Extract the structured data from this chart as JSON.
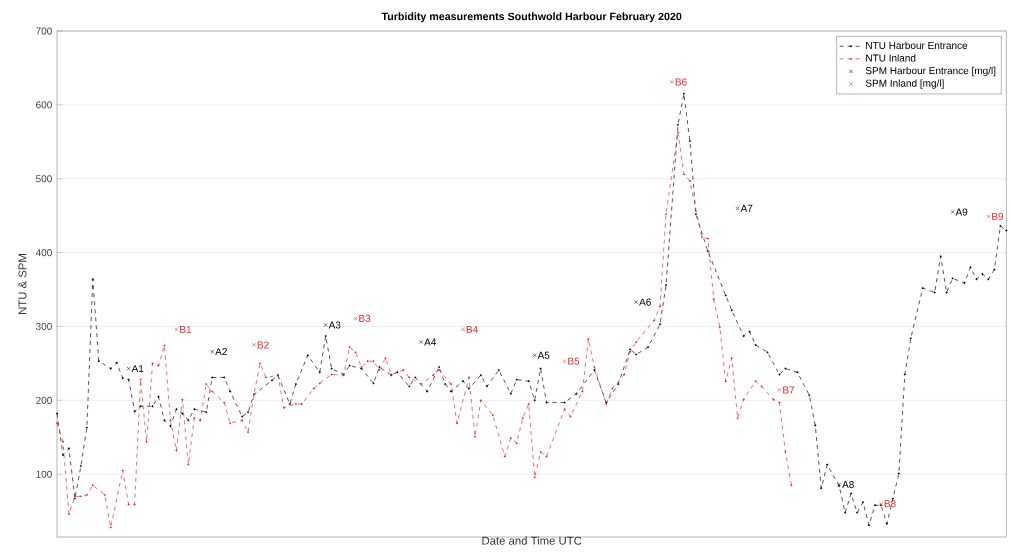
{
  "chart_data": {
    "type": "line",
    "title": "Turbidity measurements Southwold Harbour February 2020",
    "xlabel": "Date and Time UTC",
    "ylabel": "NTU & SPM",
    "categories": [
      null,
      null,
      null,
      null,
      null,
      null,
      null,
      null,
      null,
      null,
      null,
      null,
      null,
      null,
      null,
      null,
      null,
      null,
      null,
      null,
      null,
      null,
      null,
      null,
      null,
      null,
      null,
      null,
      null,
      null,
      null,
      null,
      null,
      null,
      null,
      null,
      null,
      null,
      null,
      null,
      null,
      null,
      null,
      null,
      null,
      null,
      null,
      null,
      null,
      null,
      null,
      null,
      null,
      null,
      null,
      null,
      null,
      null,
      null,
      null,
      null,
      null,
      null,
      null,
      null,
      null,
      null,
      null,
      null,
      null,
      null,
      null,
      null,
      null,
      null,
      null,
      null,
      null,
      null,
      null,
      null,
      null,
      null,
      null,
      null,
      null,
      null,
      null,
      null,
      null,
      null,
      null,
      null,
      null,
      null,
      null,
      null,
      null,
      null,
      null,
      null,
      null,
      null,
      null,
      null,
      null,
      null,
      null,
      null,
      null,
      null,
      null,
      null,
      null,
      null,
      null,
      null,
      null,
      null,
      null,
      null,
      null,
      null,
      null,
      null,
      null,
      null,
      null,
      null,
      null,
      null,
      null,
      null,
      null,
      null,
      null,
      null,
      null,
      null,
      null,
      null,
      null,
      null,
      null,
      null,
      null,
      null,
      null,
      null,
      null,
      null,
      null,
      null,
      null,
      null,
      null,
      null,
      null,
      null,
      null
    ],
    "series": [
      {
        "name": "NTU Harbour Entrance",
        "color": "#000000",
        "line_style": "dashed",
        "marker": "circle",
        "values": [
          182,
          126,
          135,
          67,
          111,
          163,
          364,
          253,
          null,
          243,
          251,
          230,
          228,
          185,
          192,
          null,
          192,
          205,
          173,
          165,
          188,
          182,
          173,
          188,
          null,
          184,
          231,
          null,
          231,
          212,
          null,
          178,
          184,
          208,
          null,
          null,
          227,
          234,
          null,
          195,
          222,
          null,
          261,
          null,
          238,
          287,
          243,
          null,
          235,
          247,
          null,
          243,
          null,
          223,
          245,
          null,
          234,
          238,
          null,
          219,
          231,
          null,
          212,
          null,
          245,
          222,
          212,
          null,
          226,
          216,
          null,
          234,
          219,
          null,
          241,
          null,
          209,
          228,
          null,
          226,
          200,
          243,
          197,
          null,
          null,
          197,
          null,
          209,
          null,
          null,
          241,
          null,
          197,
          null,
          222,
          null,
          269,
          262,
          null,
          272,
          null,
          303,
          356,
          null,
          573,
          615,
          551,
          452,
          null,
          402,
          null,
          null,
          342,
          322,
          null,
          287,
          293,
          275,
          null,
          265,
          null,
          235,
          243,
          null,
          238,
          null,
          207,
          166,
          81,
          113,
          null,
          84,
          48,
          74,
          48,
          62,
          31,
          58,
          58,
          33,
          67,
          101,
          235,
          284,
          null,
          352,
          null,
          346,
          395,
          346,
          365,
          null,
          359,
          380,
          364,
          371,
          364,
          377,
          436,
          430
        ]
      },
      {
        "name": "NTU Inland",
        "color": "#e8262a",
        "line_style": "dashed",
        "marker": "circle",
        "values": [
          169,
          144,
          46,
          70,
          70,
          72,
          85,
          null,
          72,
          28,
          null,
          105,
          59,
          59,
          228,
          144,
          250,
          247,
          274,
          173,
          132,
          201,
          113,
          176,
          173,
          222,
          212,
          null,
          197,
          169,
          null,
          173,
          157,
          208,
          250,
          231,
          null,
          234,
          190,
          null,
          195,
          195,
          null,
          216,
          223,
          null,
          235,
          null,
          234,
          272,
          265,
          245,
          253,
          253,
          241,
          257,
          235,
          null,
          241,
          231,
          null,
          222,
          null,
          234,
          241,
          null,
          222,
          169,
          null,
          231,
          151,
          200,
          null,
          180,
          null,
          124,
          149,
          142,
          176,
          195,
          96,
          130,
          124,
          null,
          null,
          188,
          178,
          null,
          212,
          283,
          245,
          null,
          195,
          216,
          null,
          235,
          266,
          279,
          null,
          null,
          308,
          327,
          452,
          null,
          563,
          506,
          497,
          null,
          421,
          419,
          337,
          299,
          226,
          257,
          176,
          201,
          null,
          226,
          219,
          null,
          201,
          197,
          130,
          85,
          null,
          null,
          null,
          null,
          null,
          null,
          null,
          null,
          null,
          null,
          null,
          null,
          null,
          null,
          null,
          null,
          null,
          null,
          null,
          null,
          null,
          null,
          null,
          null,
          null,
          null,
          null,
          null,
          null,
          null,
          null,
          null,
          null,
          null,
          null,
          null
        ]
      },
      {
        "name": "SPM Harbour Entrance [mg/l]",
        "type": "scatter",
        "color": "#000000",
        "marker": "cross",
        "values": [
          null,
          null,
          null,
          null,
          null,
          null,
          null,
          null,
          null,
          null,
          null,
          null,
          243,
          null,
          null,
          null,
          null,
          null,
          null,
          null,
          null,
          null,
          null,
          null,
          null,
          null,
          266,
          null,
          null,
          null,
          null,
          null,
          null,
          null,
          null,
          null,
          null,
          null,
          null,
          null,
          null,
          null,
          null,
          null,
          null,
          302,
          null,
          null,
          null,
          null,
          null,
          null,
          null,
          null,
          null,
          null,
          null,
          null,
          null,
          null,
          null,
          279,
          null,
          null,
          null,
          null,
          null,
          null,
          null,
          null,
          null,
          null,
          null,
          null,
          null,
          null,
          null,
          null,
          null,
          null,
          261,
          null,
          null,
          null,
          null,
          null,
          null,
          null,
          null,
          null,
          null,
          null,
          null,
          null,
          null,
          null,
          null,
          333,
          null,
          null,
          null,
          null,
          null,
          null,
          null,
          null,
          null,
          null,
          null,
          null,
          null,
          null,
          null,
          null,
          460,
          null,
          null,
          null,
          null,
          null,
          null,
          null,
          null,
          null,
          null,
          null,
          null,
          null,
          null,
          null,
          null,
          86,
          null,
          null,
          null,
          null,
          null,
          null,
          null,
          null,
          null,
          null,
          null,
          null,
          null,
          null,
          null,
          null,
          null,
          null,
          455,
          null,
          null,
          null,
          null,
          null,
          null,
          null,
          null,
          null
        ],
        "value_labels": [
          null,
          null,
          null,
          null,
          null,
          null,
          null,
          null,
          null,
          null,
          null,
          null,
          "A1",
          null,
          null,
          null,
          null,
          null,
          null,
          null,
          null,
          null,
          null,
          null,
          null,
          null,
          "A2",
          null,
          null,
          null,
          null,
          null,
          null,
          null,
          null,
          null,
          null,
          null,
          null,
          null,
          null,
          null,
          null,
          null,
          null,
          "A3",
          null,
          null,
          null,
          null,
          null,
          null,
          null,
          null,
          null,
          null,
          null,
          null,
          null,
          null,
          null,
          "A4",
          null,
          null,
          null,
          null,
          null,
          null,
          null,
          null,
          null,
          null,
          null,
          null,
          null,
          null,
          null,
          null,
          null,
          null,
          "A5",
          null,
          null,
          null,
          null,
          null,
          null,
          null,
          null,
          null,
          null,
          null,
          null,
          null,
          null,
          null,
          null,
          "A6",
          null,
          null,
          null,
          null,
          null,
          null,
          null,
          null,
          null,
          null,
          null,
          null,
          null,
          null,
          null,
          null,
          "A7",
          null,
          null,
          null,
          null,
          null,
          null,
          null,
          null,
          null,
          null,
          null,
          null,
          null,
          null,
          null,
          null,
          "A8",
          null,
          null,
          null,
          null,
          null,
          null,
          null,
          null,
          null,
          null,
          null,
          null,
          null,
          null,
          null,
          null,
          null,
          null,
          "A9",
          null,
          null,
          null,
          null,
          null,
          null,
          null,
          null,
          null
        ]
      },
      {
        "name": "SPM Inland [mg/l]",
        "type": "scatter",
        "color": "#e8262a",
        "marker": "cross",
        "values": [
          null,
          null,
          null,
          null,
          null,
          null,
          null,
          null,
          null,
          null,
          null,
          null,
          null,
          null,
          null,
          null,
          null,
          null,
          null,
          null,
          296,
          null,
          null,
          null,
          null,
          null,
          null,
          null,
          null,
          null,
          null,
          null,
          null,
          275,
          null,
          null,
          null,
          null,
          null,
          null,
          null,
          null,
          null,
          null,
          null,
          null,
          null,
          null,
          null,
          null,
          311,
          null,
          null,
          null,
          null,
          null,
          null,
          null,
          null,
          null,
          null,
          null,
          null,
          null,
          null,
          null,
          null,
          null,
          296,
          null,
          null,
          null,
          null,
          null,
          null,
          null,
          null,
          null,
          null,
          null,
          null,
          null,
          null,
          null,
          null,
          253,
          null,
          null,
          null,
          null,
          null,
          null,
          null,
          null,
          null,
          null,
          null,
          null,
          null,
          null,
          null,
          null,
          null,
          631,
          null,
          null,
          null,
          null,
          null,
          null,
          null,
          null,
          null,
          null,
          null,
          null,
          null,
          null,
          null,
          null,
          null,
          214,
          null,
          null,
          null,
          null,
          null,
          null,
          null,
          null,
          null,
          null,
          null,
          null,
          null,
          null,
          null,
          null,
          60,
          null,
          null,
          null,
          null,
          null,
          null,
          null,
          null,
          null,
          null,
          null,
          null,
          null,
          null,
          null,
          null,
          null,
          449,
          null,
          null,
          null
        ],
        "value_labels": [
          null,
          null,
          null,
          null,
          null,
          null,
          null,
          null,
          null,
          null,
          null,
          null,
          null,
          null,
          null,
          null,
          null,
          null,
          null,
          null,
          "B1",
          null,
          null,
          null,
          null,
          null,
          null,
          null,
          null,
          null,
          null,
          null,
          null,
          "B2",
          null,
          null,
          null,
          null,
          null,
          null,
          null,
          null,
          null,
          null,
          null,
          null,
          null,
          null,
          null,
          null,
          "B3",
          null,
          null,
          null,
          null,
          null,
          null,
          null,
          null,
          null,
          null,
          null,
          null,
          null,
          null,
          null,
          null,
          null,
          "B4",
          null,
          null,
          null,
          null,
          null,
          null,
          null,
          null,
          null,
          null,
          null,
          null,
          null,
          null,
          null,
          null,
          "B5",
          null,
          null,
          null,
          null,
          null,
          null,
          null,
          null,
          null,
          null,
          null,
          null,
          null,
          null,
          null,
          null,
          null,
          "B6",
          null,
          null,
          null,
          null,
          null,
          null,
          null,
          null,
          null,
          null,
          null,
          null,
          null,
          null,
          null,
          null,
          null,
          "B7",
          null,
          null,
          null,
          null,
          null,
          null,
          null,
          null,
          null,
          null,
          null,
          null,
          null,
          null,
          null,
          null,
          "B8",
          null,
          null,
          null,
          null,
          null,
          null,
          null,
          null,
          null,
          null,
          null,
          null,
          null,
          null,
          null,
          null,
          null,
          "B9",
          null,
          null,
          null
        ]
      }
    ],
    "ylim": [
      15,
      700
    ],
    "yticks": [
      100,
      200,
      300,
      400,
      500,
      600,
      700
    ],
    "grid": "y",
    "legend": "top right",
    "tick_labels": "y"
  }
}
